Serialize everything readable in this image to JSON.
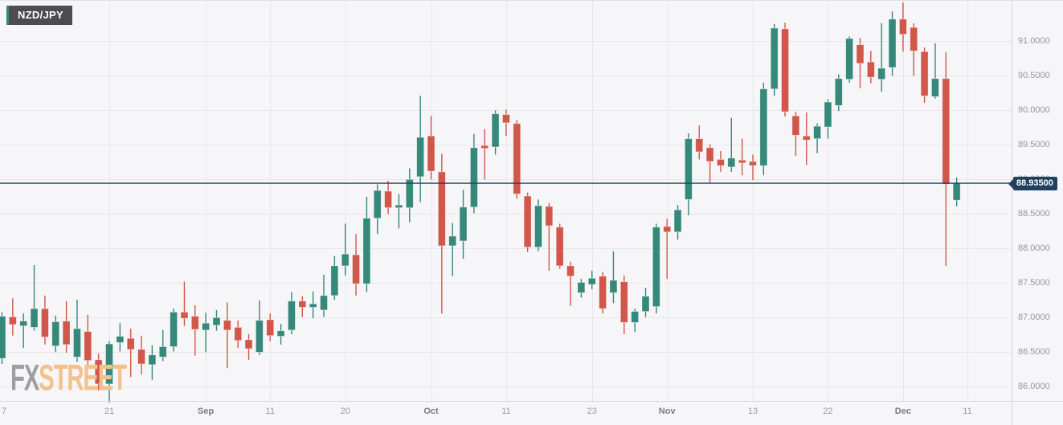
{
  "instrument": {
    "label": "NZD/JPY"
  },
  "watermark": {
    "part1": "FX",
    "part2": "STREET"
  },
  "price_line": {
    "value": 88.935,
    "label": "88.93500"
  },
  "colors": {
    "bull": "#35887a",
    "bear": "#d1574a",
    "price_line": "#21405f",
    "grid": "#e7e7ea",
    "axis_separator": "#d7d7dc",
    "background": "#f6f6f8",
    "tag_background": "#4d4d50",
    "tag_accent": "#2e8b77",
    "watermark_fx": "#9e9ea1",
    "watermark_street": "#f3c28c"
  },
  "chart_data": {
    "type": "candlestick",
    "title": "NZD/JPY daily candlestick chart",
    "legend_position": "none",
    "grid": true,
    "y_axis": {
      "min": 86.0,
      "max": 91.0,
      "ticks": [
        {
          "label": "91.0000",
          "value": 91.0
        },
        {
          "label": "90.5000",
          "value": 90.5
        },
        {
          "label": "90.0000",
          "value": 90.0
        },
        {
          "label": "89.5000",
          "value": 89.5
        },
        {
          "label": "89.0000",
          "value": 89.0
        },
        {
          "label": "88.5000",
          "value": 88.5
        },
        {
          "label": "88.0000",
          "value": 88.0
        },
        {
          "label": "87.5000",
          "value": 87.5
        },
        {
          "label": "87.0000",
          "value": 87.0
        },
        {
          "label": "86.5000",
          "value": 86.5
        },
        {
          "label": "86.0000",
          "value": 86.0
        }
      ]
    },
    "x_axis": {
      "ticks": [
        {
          "label": "7",
          "index": 0,
          "bold": false,
          "grid": false
        },
        {
          "label": "21",
          "index": 10,
          "bold": false,
          "grid": true
        },
        {
          "label": "Sep",
          "index": 19,
          "bold": true,
          "grid": true
        },
        {
          "label": "11",
          "index": 25,
          "bold": false,
          "grid": true
        },
        {
          "label": "20",
          "index": 32,
          "bold": false,
          "grid": true
        },
        {
          "label": "Oct",
          "index": 40,
          "bold": true,
          "grid": true
        },
        {
          "label": "11",
          "index": 47,
          "bold": false,
          "grid": true
        },
        {
          "label": "23",
          "index": 55,
          "bold": false,
          "grid": true
        },
        {
          "label": "Nov",
          "index": 62,
          "bold": true,
          "grid": true
        },
        {
          "label": "13",
          "index": 70,
          "bold": false,
          "grid": true
        },
        {
          "label": "22",
          "index": 77,
          "bold": false,
          "grid": true
        },
        {
          "label": "Dec",
          "index": 84,
          "bold": true,
          "grid": true
        },
        {
          "label": "11",
          "index": 90,
          "bold": false,
          "grid": true
        }
      ]
    },
    "candles_format": [
      "open",
      "high",
      "low",
      "close"
    ],
    "candles": [
      [
        86.4,
        87.07,
        86.32,
        87.01
      ],
      [
        87.0,
        87.27,
        86.73,
        86.89
      ],
      [
        86.87,
        87.05,
        86.55,
        86.94
      ],
      [
        86.85,
        87.75,
        86.8,
        87.12
      ],
      [
        87.12,
        87.31,
        86.6,
        86.71
      ],
      [
        86.58,
        87.02,
        86.49,
        86.93
      ],
      [
        86.94,
        87.23,
        86.48,
        86.6
      ],
      [
        86.42,
        87.25,
        86.35,
        86.83
      ],
      [
        86.79,
        87.03,
        86.31,
        86.37
      ],
      [
        86.38,
        86.47,
        85.94,
        86.03
      ],
      [
        86.03,
        86.65,
        85.76,
        86.61
      ],
      [
        86.63,
        86.91,
        86.5,
        86.72
      ],
      [
        86.69,
        86.83,
        86.13,
        86.53
      ],
      [
        86.53,
        86.73,
        86.17,
        86.32
      ],
      [
        86.31,
        86.59,
        86.09,
        86.45
      ],
      [
        86.42,
        86.81,
        86.36,
        86.57
      ],
      [
        86.57,
        87.12,
        86.5,
        87.07
      ],
      [
        87.07,
        87.51,
        86.87,
        86.98
      ],
      [
        87.01,
        87.17,
        86.44,
        86.82
      ],
      [
        86.81,
        87.06,
        86.49,
        86.91
      ],
      [
        86.88,
        87.1,
        86.8,
        86.99
      ],
      [
        86.95,
        87.21,
        86.26,
        86.81
      ],
      [
        86.85,
        86.95,
        86.55,
        86.66
      ],
      [
        86.67,
        86.75,
        86.38,
        86.54
      ],
      [
        86.49,
        87.24,
        86.45,
        86.95
      ],
      [
        86.96,
        87.05,
        86.65,
        86.73
      ],
      [
        86.72,
        86.9,
        86.6,
        86.8
      ],
      [
        86.81,
        87.36,
        86.75,
        87.23
      ],
      [
        87.23,
        87.3,
        87.0,
        87.14
      ],
      [
        87.14,
        87.37,
        86.98,
        87.19
      ],
      [
        87.1,
        87.61,
        87.0,
        87.31
      ],
      [
        87.31,
        87.88,
        87.25,
        87.74
      ],
      [
        87.74,
        88.35,
        87.6,
        87.91
      ],
      [
        87.9,
        88.2,
        87.31,
        87.48
      ],
      [
        87.48,
        88.74,
        87.36,
        88.43
      ],
      [
        88.43,
        88.92,
        88.2,
        88.83
      ],
      [
        88.82,
        88.97,
        88.49,
        88.58
      ],
      [
        88.58,
        88.78,
        88.28,
        88.62
      ],
      [
        88.58,
        89.15,
        88.37,
        88.99
      ],
      [
        89.03,
        90.2,
        88.66,
        89.6
      ],
      [
        89.62,
        89.91,
        88.99,
        89.11
      ],
      [
        89.1,
        89.36,
        87.05,
        88.03
      ],
      [
        88.03,
        88.36,
        87.59,
        88.17
      ],
      [
        88.1,
        88.84,
        87.84,
        88.59
      ],
      [
        88.59,
        89.65,
        88.5,
        89.45
      ],
      [
        89.48,
        89.72,
        88.99,
        89.44
      ],
      [
        89.46,
        89.99,
        89.35,
        89.94
      ],
      [
        89.93,
        90.0,
        89.62,
        89.81
      ],
      [
        89.8,
        89.85,
        88.71,
        88.78
      ],
      [
        88.75,
        88.8,
        87.94,
        88.01
      ],
      [
        88.01,
        88.7,
        87.95,
        88.61
      ],
      [
        88.6,
        88.65,
        87.67,
        88.32
      ],
      [
        88.3,
        88.35,
        87.7,
        87.74
      ],
      [
        87.74,
        87.8,
        87.16,
        87.59
      ],
      [
        87.35,
        87.55,
        87.28,
        87.5
      ],
      [
        87.47,
        87.67,
        87.4,
        87.56
      ],
      [
        87.59,
        87.65,
        87.05,
        87.12
      ],
      [
        87.35,
        87.95,
        87.2,
        87.53
      ],
      [
        87.51,
        87.6,
        86.75,
        86.92
      ],
      [
        86.92,
        87.12,
        86.78,
        87.08
      ],
      [
        87.08,
        87.42,
        87.0,
        87.3
      ],
      [
        87.15,
        88.35,
        87.05,
        88.3
      ],
      [
        88.31,
        88.42,
        87.55,
        88.23
      ],
      [
        88.23,
        88.62,
        88.12,
        88.55
      ],
      [
        88.7,
        89.66,
        88.47,
        89.58
      ],
      [
        89.58,
        89.77,
        89.28,
        89.39
      ],
      [
        89.45,
        89.5,
        88.94,
        89.25
      ],
      [
        89.28,
        89.4,
        89.1,
        89.19
      ],
      [
        89.17,
        89.88,
        89.1,
        89.3
      ],
      [
        89.27,
        89.58,
        89.05,
        89.23
      ],
      [
        89.25,
        89.35,
        88.98,
        89.19
      ],
      [
        89.19,
        90.39,
        89.05,
        90.3
      ],
      [
        90.3,
        91.24,
        90.2,
        91.18
      ],
      [
        91.17,
        91.26,
        89.9,
        89.97
      ],
      [
        89.91,
        89.97,
        89.33,
        89.63
      ],
      [
        89.62,
        89.96,
        89.2,
        89.56
      ],
      [
        89.58,
        89.8,
        89.37,
        89.76
      ],
      [
        89.75,
        90.15,
        89.58,
        90.11
      ],
      [
        90.06,
        90.51,
        89.98,
        90.45
      ],
      [
        90.44,
        91.06,
        90.39,
        91.03
      ],
      [
        90.94,
        91.04,
        90.31,
        90.67
      ],
      [
        90.69,
        90.85,
        90.38,
        90.47
      ],
      [
        90.44,
        91.25,
        90.26,
        90.6
      ],
      [
        90.61,
        91.42,
        90.49,
        91.31
      ],
      [
        91.31,
        91.55,
        90.84,
        91.09
      ],
      [
        91.19,
        91.25,
        90.49,
        90.85
      ],
      [
        90.84,
        90.9,
        90.1,
        90.2
      ],
      [
        90.19,
        90.96,
        90.16,
        90.45
      ],
      [
        90.45,
        90.83,
        87.74,
        88.92
      ],
      [
        88.69,
        89.02,
        88.6,
        88.935
      ]
    ]
  }
}
